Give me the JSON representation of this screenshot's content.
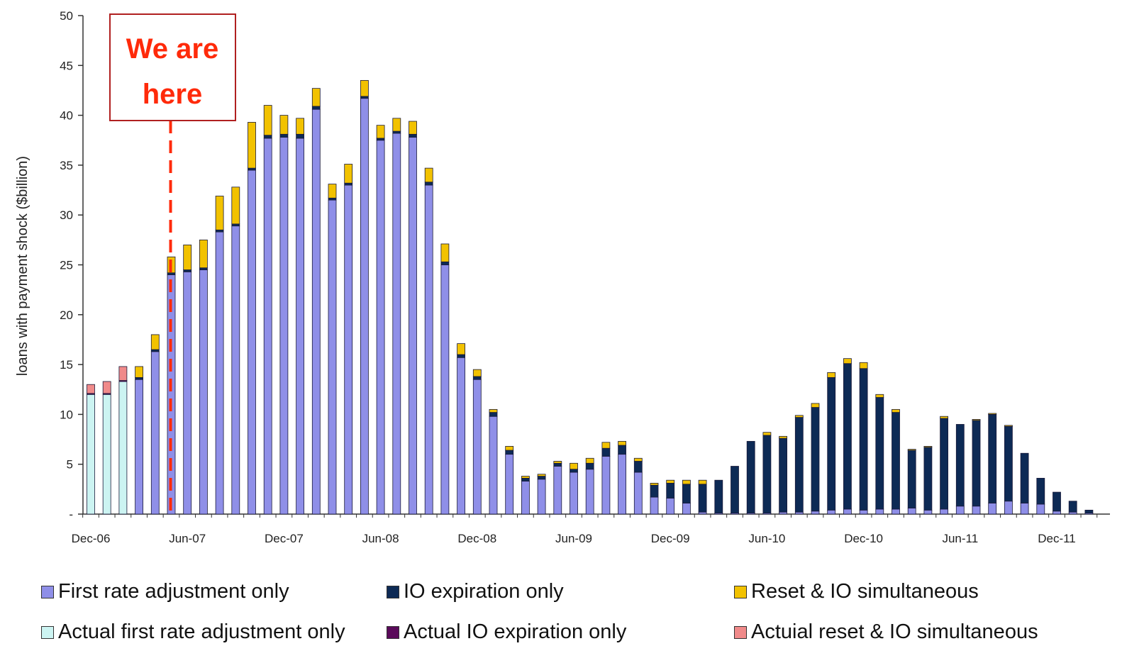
{
  "chart_data": {
    "type": "bar",
    "stacked": true,
    "title": "",
    "xlabel": "",
    "ylabel": "loans with payment shock ($billion)",
    "ylim": [
      0,
      50
    ],
    "yticks": [
      "-",
      "5",
      "10",
      "15",
      "20",
      "25",
      "30",
      "35",
      "40",
      "45",
      "50"
    ],
    "x_tick_labels": [
      "Dec-06",
      "Jun-07",
      "Dec-07",
      "Jun-08",
      "Dec-08",
      "Jun-09",
      "Dec-09",
      "Jun-10",
      "Dec-10",
      "Jun-11",
      "Dec-11"
    ],
    "categories": [
      "Dec-06",
      "Jan-07",
      "Feb-07",
      "Mar-07",
      "Apr-07",
      "May-07",
      "Jun-07",
      "Jul-07",
      "Aug-07",
      "Sep-07",
      "Oct-07",
      "Nov-07",
      "Dec-07",
      "Jan-08",
      "Feb-08",
      "Mar-08",
      "Apr-08",
      "May-08",
      "Jun-08",
      "Jul-08",
      "Aug-08",
      "Sep-08",
      "Oct-08",
      "Nov-08",
      "Dec-08",
      "Jan-09",
      "Feb-09",
      "Mar-09",
      "Apr-09",
      "May-09",
      "Jun-09",
      "Jul-09",
      "Aug-09",
      "Sep-09",
      "Oct-09",
      "Nov-09",
      "Dec-09",
      "Jan-10",
      "Feb-10",
      "Mar-10",
      "Apr-10",
      "May-10",
      "Jun-10",
      "Jul-10",
      "Aug-10",
      "Sep-10",
      "Oct-10",
      "Nov-10",
      "Dec-10",
      "Jan-11",
      "Feb-11",
      "Mar-11",
      "Apr-11",
      "May-11",
      "Jun-11",
      "Jul-11",
      "Aug-11",
      "Sep-11",
      "Oct-11",
      "Nov-11",
      "Dec-11",
      "Jan-12",
      "Feb-12"
    ],
    "series": [
      {
        "name": "Actual first rate adjustment only",
        "color": "#ccf4f2",
        "values": [
          12,
          12,
          13.3,
          0,
          0,
          0,
          0,
          0,
          0,
          0,
          0,
          0,
          0,
          0,
          0,
          0,
          0,
          0,
          0,
          0,
          0,
          0,
          0,
          0,
          0,
          0,
          0,
          0,
          0,
          0,
          0,
          0,
          0,
          0,
          0,
          0,
          0,
          0,
          0,
          0,
          0,
          0,
          0,
          0,
          0,
          0,
          0,
          0,
          0,
          0,
          0,
          0,
          0,
          0,
          0,
          0,
          0,
          0,
          0,
          0,
          0,
          0,
          0
        ]
      },
      {
        "name": "Actual IO expiration only",
        "color": "#5a0a5a",
        "values": [
          0.1,
          0.1,
          0.1,
          0,
          0,
          0,
          0,
          0,
          0,
          0,
          0,
          0,
          0,
          0,
          0,
          0,
          0,
          0,
          0,
          0,
          0,
          0,
          0,
          0,
          0,
          0,
          0,
          0,
          0,
          0,
          0,
          0,
          0,
          0,
          0,
          0,
          0,
          0,
          0,
          0,
          0,
          0,
          0,
          0,
          0,
          0,
          0,
          0,
          0,
          0,
          0,
          0,
          0,
          0,
          0,
          0,
          0,
          0,
          0,
          0,
          0,
          0,
          0
        ]
      },
      {
        "name": "Actuial reset & IO simultaneous",
        "color": "#f08a8a",
        "values": [
          0.9,
          1.2,
          1.4,
          0,
          0,
          0,
          0,
          0,
          0,
          0,
          0,
          0,
          0,
          0,
          0,
          0,
          0,
          0,
          0,
          0,
          0,
          0,
          0,
          0,
          0,
          0,
          0,
          0,
          0,
          0,
          0,
          0,
          0,
          0,
          0,
          0,
          0,
          0,
          0,
          0,
          0,
          0,
          0,
          0,
          0,
          0,
          0,
          0,
          0,
          0,
          0,
          0,
          0,
          0,
          0,
          0,
          0,
          0,
          0,
          0,
          0,
          0,
          0
        ]
      },
      {
        "name": "First rate adjustment only",
        "color": "#8f8fe8",
        "values": [
          0,
          0,
          0,
          13.5,
          16.3,
          24,
          24.3,
          24.5,
          28.3,
          28.9,
          34.5,
          37.7,
          37.8,
          37.7,
          40.6,
          31.5,
          33,
          41.7,
          37.5,
          38.2,
          37.8,
          33,
          25,
          15.7,
          13.5,
          9.8,
          6,
          3.3,
          3.5,
          4.8,
          4.2,
          4.5,
          5.8,
          6,
          4.2,
          1.7,
          1.6,
          1.1,
          0.2,
          0.1,
          0.1,
          0.1,
          0.1,
          0.2,
          0.2,
          0.3,
          0.4,
          0.5,
          0.4,
          0.5,
          0.5,
          0.6,
          0.4,
          0.5,
          0.8,
          0.8,
          1.1,
          1.3,
          1.1,
          1,
          0.3,
          0.2,
          0.1
        ]
      },
      {
        "name": "IO expiration only",
        "color": "#0d2a55",
        "values": [
          0,
          0,
          0,
          0.2,
          0.2,
          0.2,
          0.2,
          0.2,
          0.2,
          0.2,
          0.2,
          0.3,
          0.3,
          0.4,
          0.3,
          0.2,
          0.2,
          0.2,
          0.2,
          0.2,
          0.3,
          0.3,
          0.3,
          0.3,
          0.3,
          0.4,
          0.4,
          0.3,
          0.3,
          0.3,
          0.3,
          0.6,
          0.8,
          0.9,
          1.1,
          1.2,
          1.5,
          1.9,
          2.8,
          3.3,
          4.7,
          7.2,
          7.8,
          7.4,
          9.5,
          10.4,
          13.3,
          14.6,
          14.2,
          11.2,
          9.7,
          5.8,
          6.3,
          9.1,
          8.2,
          8.6,
          8.9,
          7.5,
          5,
          2.6,
          1.9,
          1.1,
          0.3
        ]
      },
      {
        "name": "Reset & IO simultaneous",
        "color": "#f2c200",
        "values": [
          0,
          0,
          0,
          1.1,
          1.5,
          1.6,
          2.5,
          2.8,
          3.4,
          3.7,
          4.6,
          3,
          1.9,
          1.6,
          1.8,
          1.4,
          1.9,
          1.6,
          1.3,
          1.3,
          1.3,
          1.4,
          1.8,
          1.1,
          0.7,
          0.3,
          0.4,
          0.2,
          0.2,
          0.2,
          0.6,
          0.5,
          0.6,
          0.4,
          0.3,
          0.2,
          0.3,
          0.4,
          0.4,
          0,
          0,
          0,
          0.3,
          0.2,
          0.2,
          0.4,
          0.5,
          0.5,
          0.6,
          0.3,
          0.3,
          0.1,
          0.1,
          0.2,
          0,
          0.1,
          0.1,
          0.1,
          0,
          0,
          0,
          0,
          0
        ]
      }
    ],
    "legend_position": "bottom",
    "legend_order": [
      3,
      4,
      5,
      0,
      1,
      2
    ],
    "annotation": {
      "lines": [
        "We are",
        "here"
      ],
      "x_category": "May-07",
      "line_color": "#ff2a0a",
      "line_style": "dashed",
      "box_border_color": "#b02020"
    },
    "grid": false
  }
}
